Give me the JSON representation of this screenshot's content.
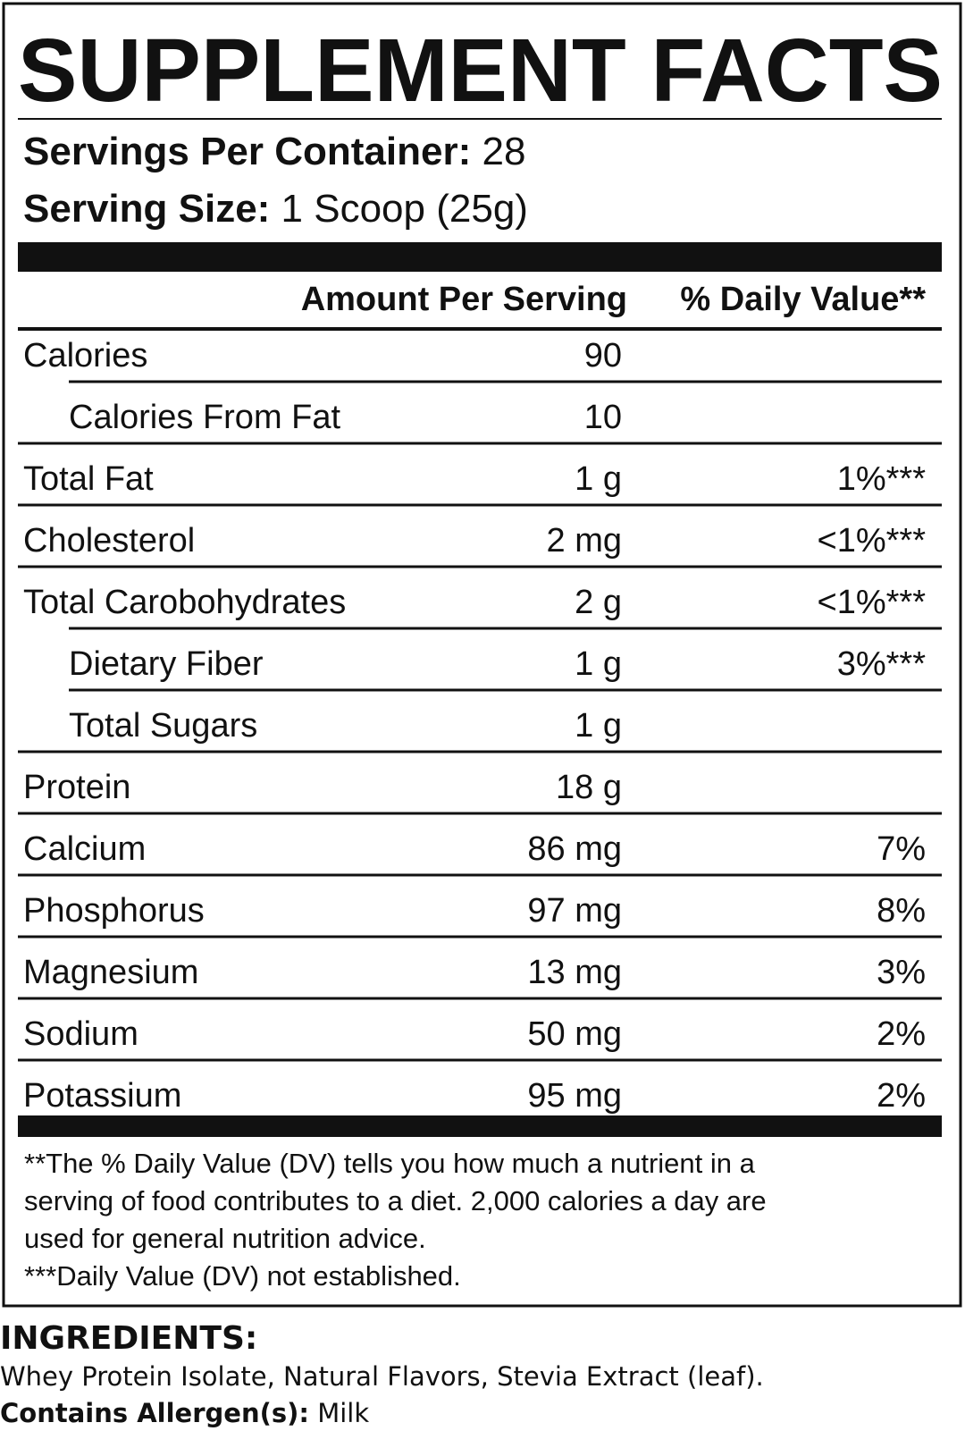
{
  "title": "SUPPLEMENT FACTS",
  "servings": {
    "label": "Servings Per Container:",
    "value": "28"
  },
  "serving_size": {
    "label": "Serving Size:",
    "value": "1 Scoop (25g)"
  },
  "header": {
    "amount": "Amount Per Serving",
    "daily_value": "% Daily Value**"
  },
  "rows": [
    {
      "name": "Calories",
      "amount": "90",
      "subrows": [
        {
          "name": "Calories From Fat",
          "amount": "10"
        }
      ]
    },
    {
      "name": "Total Fat",
      "amount": "1 g",
      "daily_value": "1%***"
    },
    {
      "name": "Cholesterol",
      "amount": "2 mg",
      "daily_value": "<1%***"
    },
    {
      "name": "Total Carobohydrates",
      "amount": "2 g",
      "daily_value": "<1%***",
      "subrows": [
        {
          "name": "Dietary Fiber",
          "amount": "1 g",
          "daily_value": "3%***"
        },
        {
          "name": "Total Sugars",
          "amount": "1 g"
        }
      ]
    },
    {
      "name": "Protein",
      "amount": "18 g"
    },
    {
      "name": "Calcium",
      "amount": "86 mg",
      "daily_value": "7%"
    },
    {
      "name": "Phosphorus",
      "amount": "97 mg",
      "daily_value": "8%"
    },
    {
      "name": "Magnesium",
      "amount": "13 mg",
      "daily_value": "3%"
    },
    {
      "name": "Sodium",
      "amount": "50 mg",
      "daily_value": "2%"
    },
    {
      "name": "Potassium",
      "amount": "95 mg",
      "daily_value": "2%"
    }
  ],
  "footnotes": [
    "**The % Daily Value (DV) tells you how much a nutrient in a",
    "serving of food contributes to a diet. 2,000 calories a day are",
    "used for general nutrition advice.",
    "***Daily Value (DV) not established."
  ],
  "ingredients": {
    "label": "INGREDIENTS:",
    "text": "Whey Protein Isolate, Natural Flavors, Stevia Extract (leaf)."
  },
  "allergens": {
    "label": "Contains Allergen(s):",
    "value": "Milk"
  }
}
